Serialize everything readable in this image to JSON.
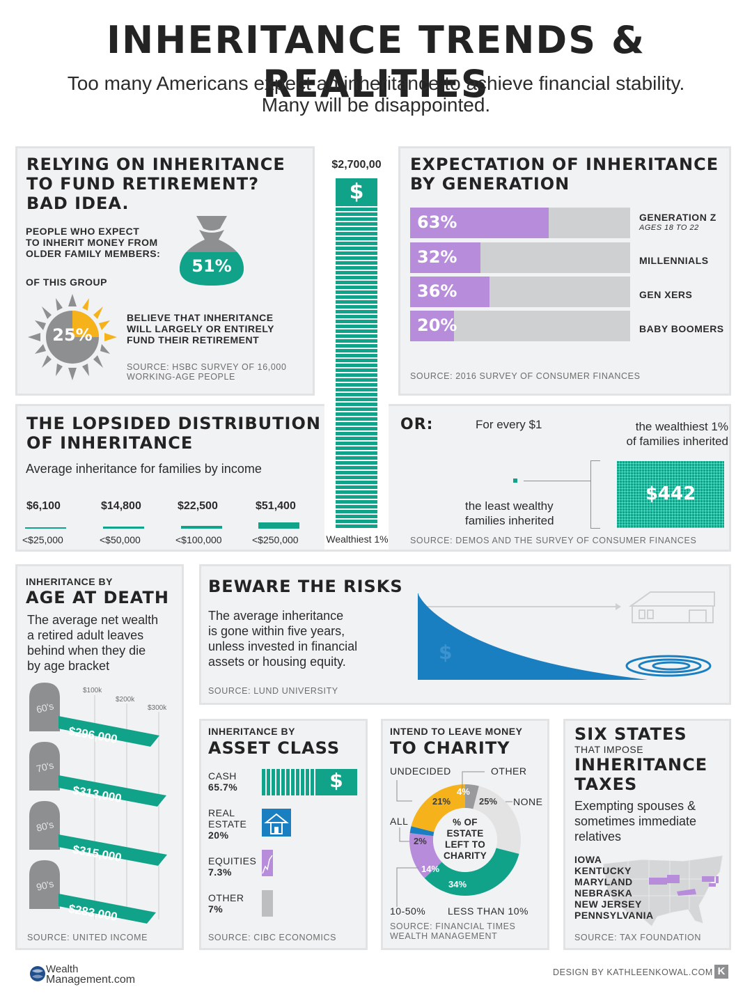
{
  "header": {
    "title": "INHERITANCE TRENDS & REALITIES",
    "subtitle_line1": "Too many Americans expect an inheritance to achieve financial stability.",
    "subtitle_line2": "Many will be disappointed."
  },
  "relying": {
    "title_l1": "RELYING ON INHERITANCE",
    "title_l2": "TO FUND RETIREMENT?",
    "title_l3": "BAD IDEA.",
    "expect_l1": "PEOPLE WHO EXPECT",
    "expect_l2": "TO INHERIT MONEY FROM",
    "expect_l3": "OLDER FAMILY MEMBERS:",
    "expect_pct": "51%",
    "group_label": "OF THIS GROUP",
    "believe_pct": "25%",
    "believe_l1": "BELIEVE THAT INHERITANCE",
    "believe_l2": "WILL LARGELY OR ENTIRELY",
    "believe_l3": "FUND THEIR RETIREMENT",
    "source_l1": "SOURCE: HSBC SURVEY OF 16,000",
    "source_l2": "WORKING-AGE PEOPLE"
  },
  "tall_bar": {
    "value_label": "$2,700,00",
    "symbol": "$",
    "category": "Wealthiest 1%"
  },
  "generation": {
    "title_l1": "EXPECTATION OF INHERITANCE",
    "title_l2": "BY GENERATION",
    "source": "SOURCE: 2016 SURVEY OF CONSUMER FINANCES",
    "rows": [
      {
        "label": "GENERATION Z",
        "sublabel": "AGES 18 TO 22",
        "pct": "63%",
        "value": 63
      },
      {
        "label": "MILLENNIALS",
        "sublabel": "",
        "pct": "32%",
        "value": 32
      },
      {
        "label": "GEN XERS",
        "sublabel": "",
        "pct": "36%",
        "value": 36
      },
      {
        "label": "BABY BOOMERS",
        "sublabel": "",
        "pct": "20%",
        "value": 20
      }
    ],
    "bar_color": "#b78ddb"
  },
  "lopsided": {
    "title_l1": "THE LOPSIDED DISTRIBUTION",
    "title_l2": "OF INHERITANCE",
    "subtitle": "Average inheritance for families by income",
    "items": [
      {
        "value": "$6,100",
        "category": "<$25,000"
      },
      {
        "value": "$14,800",
        "category": "<$50,000"
      },
      {
        "value": "$22,500",
        "category": "<$100,000"
      },
      {
        "value": "$51,400",
        "category": "<$250,000"
      }
    ]
  },
  "or_panel": {
    "or": "OR:",
    "for_every": "For every $1",
    "wealthy_l1": "the wealthiest 1%",
    "wealthy_l2": "of families inherited",
    "least_l1": "the least wealthy",
    "least_l2": "families inherited",
    "amount": "$442",
    "source": "SOURCE: DEMOS AND THE SURVEY OF CONSUMER FINANCES"
  },
  "age": {
    "kicker": "INHERITANCE BY",
    "title": "AGE AT DEATH",
    "desc_l1": "The average net wealth",
    "desc_l2": "a retired adult leaves",
    "desc_l3": "behind when they die",
    "desc_l4": "by age bracket",
    "scale": [
      "$100k",
      "$200k",
      "$300k"
    ],
    "rows": [
      {
        "age": "60's",
        "label": "$296,000",
        "value": 296000
      },
      {
        "age": "70's",
        "label": "$313,000",
        "value": 313000
      },
      {
        "age": "80's",
        "label": "$315,000",
        "value": 315000
      },
      {
        "age": "90's",
        "label": "$283,000",
        "value": 283000
      }
    ],
    "source": "SOURCE: UNITED INCOME"
  },
  "risks": {
    "title": "BEWARE THE RISKS",
    "desc_l1": "The average inheritance",
    "desc_l2": "is gone within five years,",
    "desc_l3": "unless invested in financial",
    "desc_l4": "assets or housing equity.",
    "symbol": "$",
    "source": "SOURCE: LUND UNIVERSITY"
  },
  "asset": {
    "kicker": "INHERITANCE BY",
    "title": "ASSET CLASS",
    "rows": [
      {
        "label_l1": "CASH",
        "label_l2": "",
        "pct": "65.7%",
        "icon": "dollar-icon"
      },
      {
        "label_l1": "REAL",
        "label_l2": "ESTATE",
        "pct": "20%",
        "icon": "house-icon"
      },
      {
        "label_l1": "EQUITIES",
        "label_l2": "",
        "pct": "7.3%",
        "icon": "stock-chart-icon"
      },
      {
        "label_l1": "OTHER",
        "label_l2": "",
        "pct": "7%",
        "icon": ""
      }
    ],
    "source": "SOURCE: CIBC ECONOMICS"
  },
  "charity": {
    "kicker": "INTEND TO LEAVE MONEY",
    "title": "TO CHARITY",
    "center_l1": "% OF",
    "center_l2": "ESTATE",
    "center_l3": "LEFT TO",
    "center_l4": "CHARITY",
    "labels": {
      "undecided": "UNDECIDED",
      "other": "OTHER",
      "none": "NONE",
      "all": "ALL",
      "ten_fifty": "10-50%",
      "less_ten": "LESS THAN 10%"
    },
    "source_l1": "SOURCE: FINANCIAL TIMES",
    "source_l2": "WEALTH MANAGEMENT"
  },
  "chart_data": {
    "type": "pie",
    "categories": [
      "OTHER",
      "NONE",
      "LESS THAN 10%",
      "10-50%",
      "ALL",
      "UNDECIDED"
    ],
    "values": [
      4,
      25,
      34,
      14,
      2,
      21
    ],
    "labels": [
      "4%",
      "25%",
      "34%",
      "14%",
      "2%",
      "21%"
    ],
    "colors": [
      "#999a9c",
      "#e3e3e4",
      "#10a38a",
      "#b78ddb",
      "#1a7fc1",
      "#f6b21b"
    ]
  },
  "states": {
    "title_l1": "SIX STATES",
    "subtitle": "THAT IMPOSE",
    "title_l2": "INHERITANCE",
    "title_l3": "TAXES",
    "desc_l1": "Exempting spouses &",
    "desc_l2": "sometimes immediate",
    "desc_l3": "relatives",
    "list": [
      "IOWA",
      "KENTUCKY",
      "MARYLAND",
      "NEBRASKA",
      "NEW JERSEY",
      "PENNSYLVANIA"
    ],
    "source": "SOURCE: TAX FOUNDATION"
  },
  "footer": {
    "brand_l1": "Wealth",
    "brand_l2": "Management.com",
    "credit": "DESIGN BY KATHLEENKOWAL.COM",
    "k": "K"
  }
}
